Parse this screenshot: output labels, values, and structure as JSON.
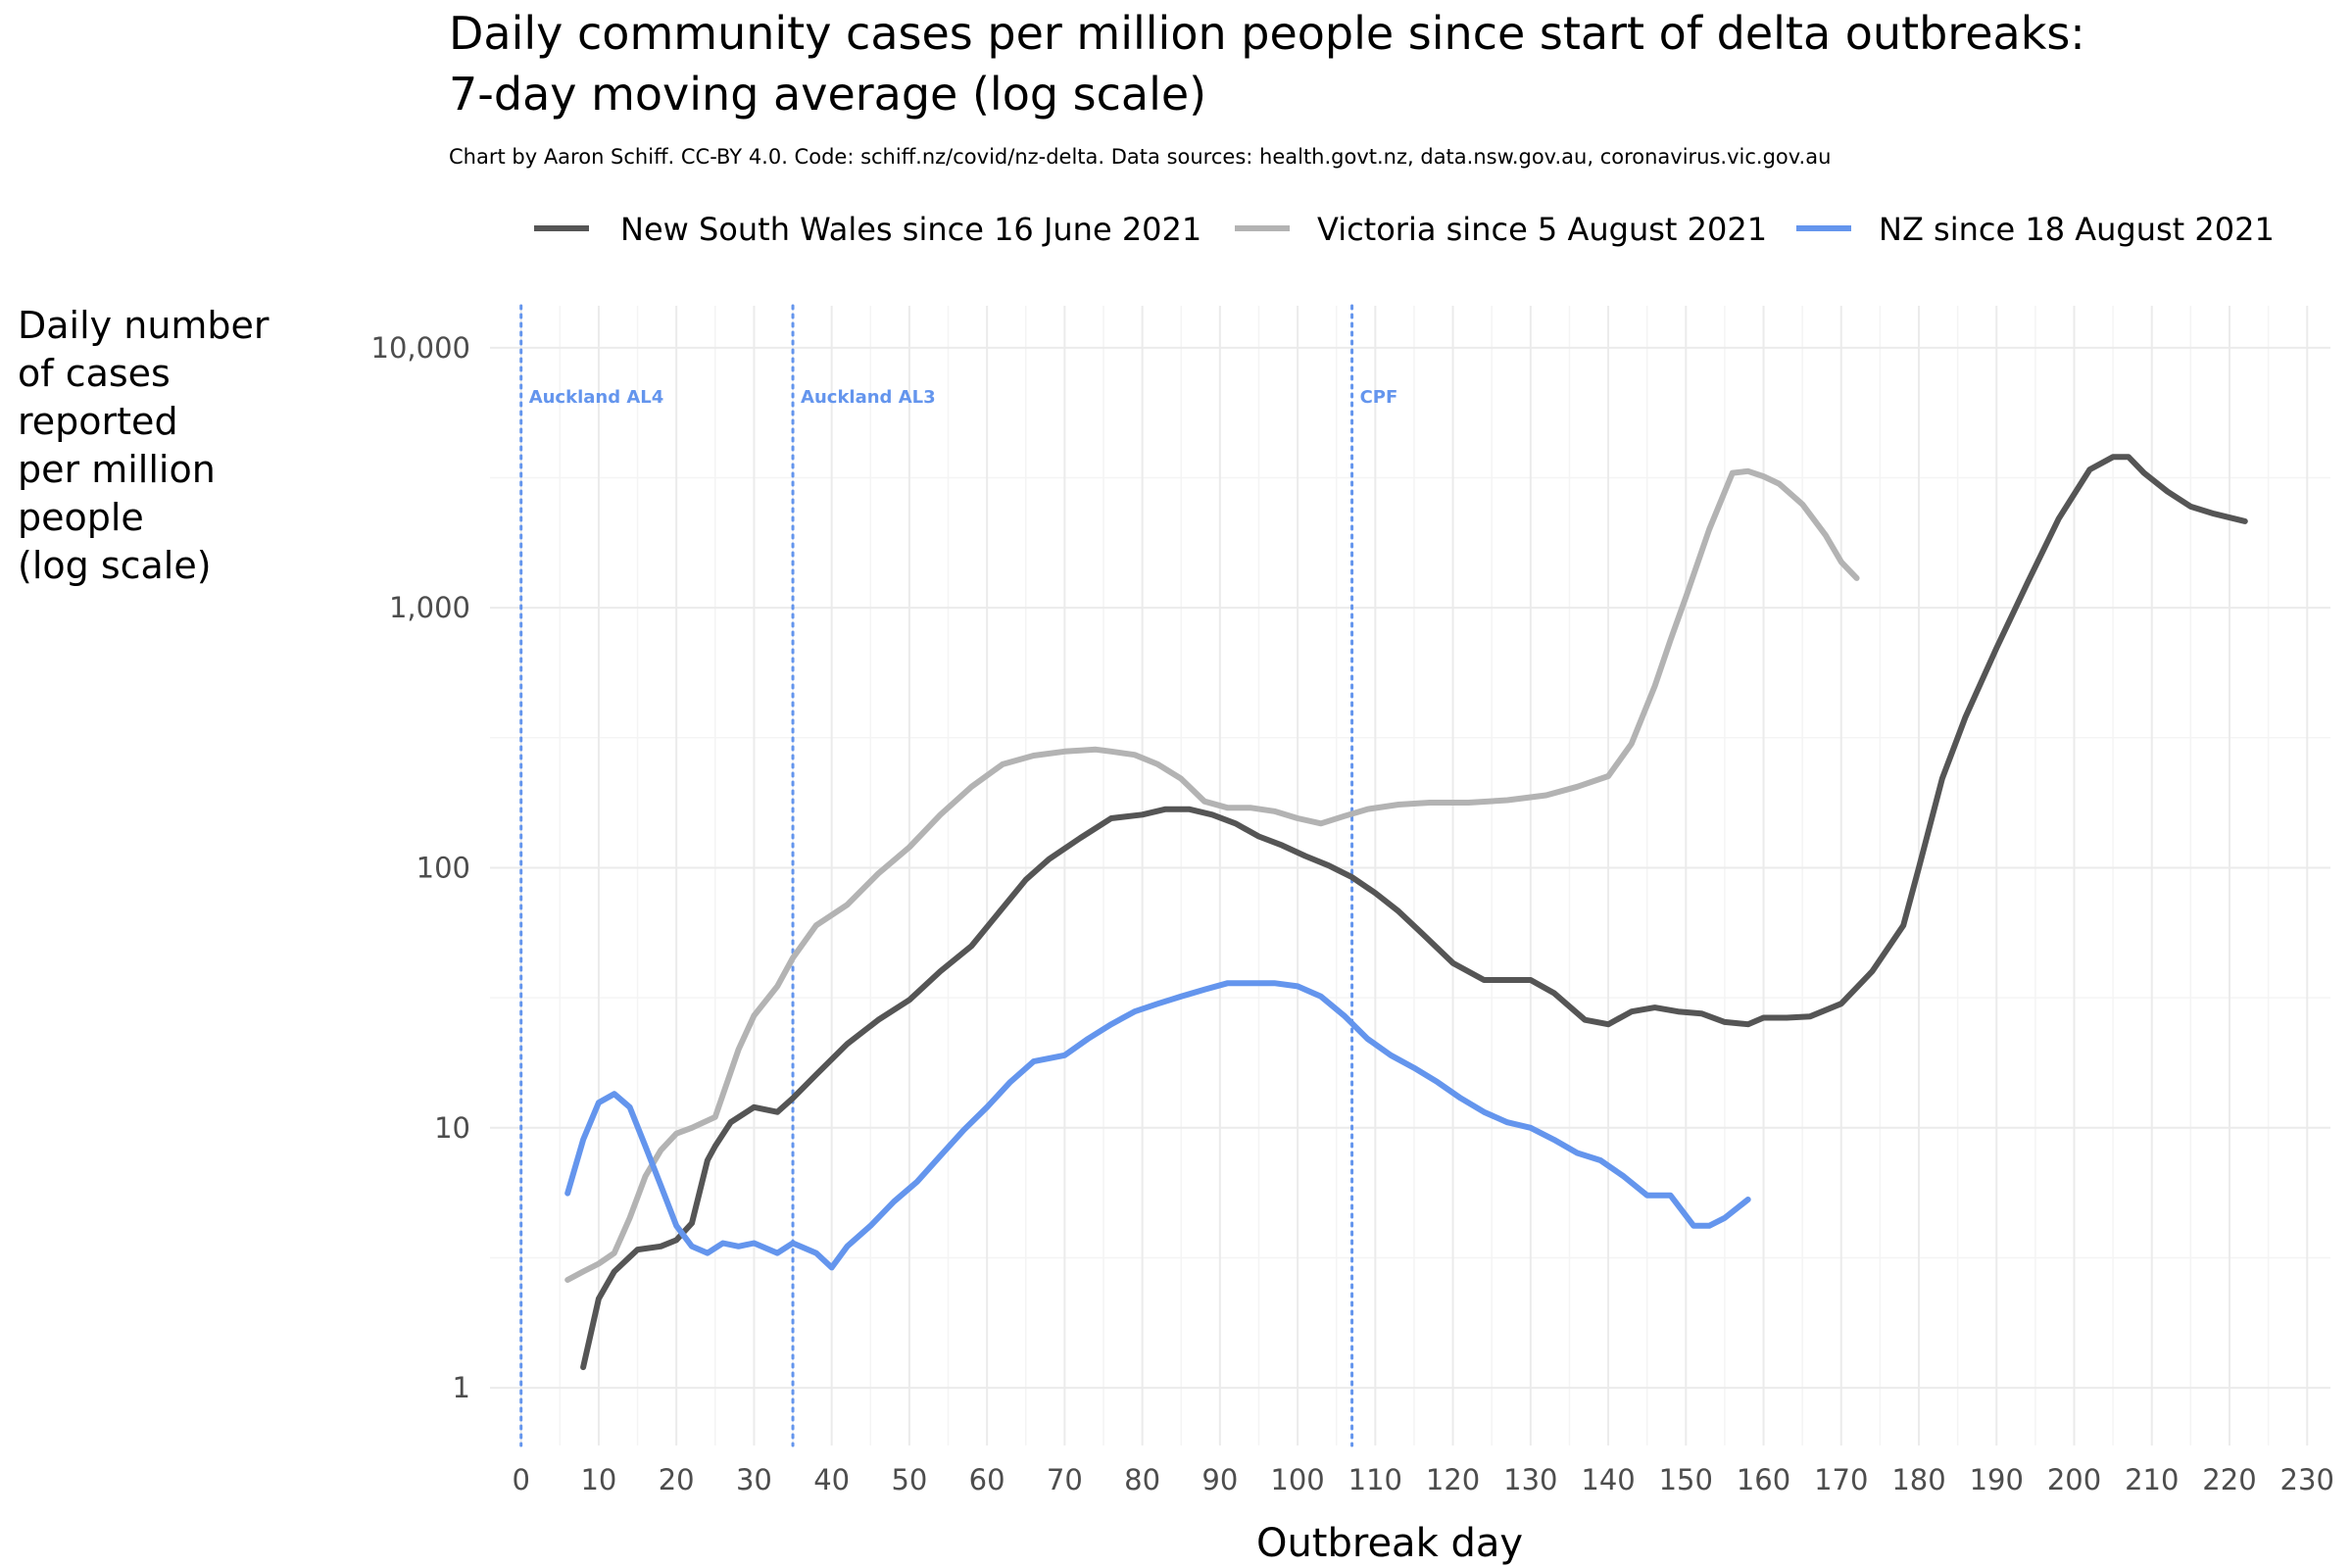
{
  "chart_data": {
    "type": "line",
    "title_line1": "Daily community cases per million people since start of delta outbreaks:",
    "title_line2": "7-day moving average (log scale)",
    "subtitle": "Chart by Aaron Schiff. CC-BY 4.0. Code: schiff.nz/covid/nz-delta. Data sources: health.govt.nz, data.nsw.gov.au, coronavirus.vic.gov.au",
    "xlabel": "Outbreak day",
    "ylabel_lines": [
      "Daily number",
      "of cases",
      "reported",
      "per million",
      "people",
      "(log scale)"
    ],
    "xlim": [
      -4,
      233
    ],
    "ylim": [
      0.6,
      14500
    ],
    "y_scale": "log10",
    "x_ticks": [
      0,
      10,
      20,
      30,
      40,
      50,
      60,
      70,
      80,
      90,
      100,
      110,
      120,
      130,
      140,
      150,
      160,
      170,
      180,
      190,
      200,
      210,
      220,
      230
    ],
    "y_ticks": [
      {
        "value": 1,
        "label": "1"
      },
      {
        "value": 10,
        "label": "10"
      },
      {
        "value": 100,
        "label": "100"
      },
      {
        "value": 1000,
        "label": "1,000"
      },
      {
        "value": 10000,
        "label": "10,000"
      }
    ],
    "grid": true,
    "legend_position": "top",
    "vlines": [
      {
        "x": 0,
        "label": "Auckland AL4"
      },
      {
        "x": 35,
        "label": "Auckland AL3"
      },
      {
        "x": 107,
        "label": "CPF"
      }
    ],
    "vline_color": "#6495ed",
    "series": [
      {
        "name": "New South Wales since 16 June 2021",
        "color": "#555555",
        "x": [
          8,
          10,
          12,
          15,
          18,
          20,
          22,
          24,
          25,
          27,
          30,
          33,
          35,
          38,
          42,
          46,
          50,
          54,
          58,
          62,
          65,
          68,
          72,
          76,
          80,
          83,
          86,
          89,
          92,
          95,
          98,
          101,
          104,
          107,
          110,
          113,
          116,
          120,
          124,
          127,
          130,
          133,
          137,
          140,
          143,
          146,
          149,
          152,
          155,
          158,
          160,
          163,
          166,
          170,
          174,
          178,
          180,
          183,
          186,
          190,
          194,
          198,
          202,
          205,
          207,
          209,
          212,
          215,
          218,
          222
        ],
        "y": [
          1.2,
          2.2,
          2.8,
          3.4,
          3.5,
          3.7,
          4.3,
          7.5,
          8.5,
          10.5,
          12,
          11.5,
          13,
          16,
          21,
          26,
          31,
          40,
          50,
          70,
          90,
          108,
          130,
          155,
          160,
          168,
          168,
          160,
          148,
          132,
          122,
          111,
          102,
          92,
          80,
          68,
          56,
          43,
          37,
          37,
          37,
          33,
          26,
          25,
          28,
          29,
          28,
          27.5,
          25.5,
          25,
          26.5,
          26.5,
          26.8,
          30,
          40,
          60,
          100,
          220,
          380,
          700,
          1250,
          2200,
          3400,
          3800,
          3800,
          3300,
          2800,
          2450,
          2300,
          2150
        ]
      },
      {
        "name": "Victoria since 5 August 2021",
        "color": "#b3b3b3",
        "x": [
          6,
          8,
          10,
          12,
          14,
          16,
          18,
          20,
          22,
          25,
          28,
          30,
          33,
          35,
          38,
          42,
          46,
          50,
          54,
          58,
          62,
          66,
          70,
          74,
          76,
          79,
          82,
          85,
          88,
          91,
          94,
          97,
          100,
          103,
          106,
          109,
          113,
          117,
          122,
          127,
          132,
          136,
          140,
          143,
          146,
          148,
          150,
          153,
          156,
          158,
          160,
          162,
          165,
          168,
          170,
          172
        ],
        "y": [
          2.6,
          2.8,
          3.0,
          3.3,
          4.5,
          6.5,
          8.2,
          9.5,
          10,
          11,
          20,
          27,
          35,
          45,
          60,
          72,
          95,
          120,
          160,
          205,
          250,
          270,
          280,
          285,
          280,
          272,
          250,
          220,
          180,
          170,
          170,
          165,
          155,
          148,
          158,
          168,
          175,
          178,
          178,
          182,
          190,
          205,
          225,
          300,
          500,
          750,
          1100,
          2000,
          3300,
          3350,
          3200,
          3000,
          2500,
          1900,
          1500,
          1300
        ]
      },
      {
        "name": "NZ since 18 August 2021",
        "color": "#6495ed",
        "x": [
          6,
          8,
          10,
          12,
          14,
          16,
          18,
          20,
          22,
          24,
          26,
          28,
          30,
          33,
          35,
          38,
          40,
          42,
          45,
          48,
          51,
          54,
          57,
          60,
          63,
          66,
          70,
          73,
          76,
          79,
          82,
          85,
          88,
          91,
          94,
          97,
          100,
          103,
          106,
          109,
          112,
          115,
          118,
          121,
          124,
          127,
          130,
          133,
          136,
          139,
          142,
          145,
          148,
          151,
          153,
          155,
          158
        ],
        "y": [
          5.6,
          9,
          12.5,
          13.5,
          12,
          8.5,
          6,
          4.2,
          3.5,
          3.3,
          3.6,
          3.5,
          3.6,
          3.3,
          3.6,
          3.3,
          2.9,
          3.5,
          4.2,
          5.2,
          6.2,
          7.8,
          9.8,
          12,
          15,
          18,
          19,
          22,
          25,
          28,
          30,
          32,
          34,
          36,
          36,
          36,
          35,
          32,
          27,
          22,
          19,
          17,
          15,
          13,
          11.5,
          10.5,
          10,
          9,
          8,
          7.5,
          6.5,
          5.5,
          5.5,
          4.2,
          4.2,
          4.5,
          5.3
        ]
      }
    ]
  }
}
